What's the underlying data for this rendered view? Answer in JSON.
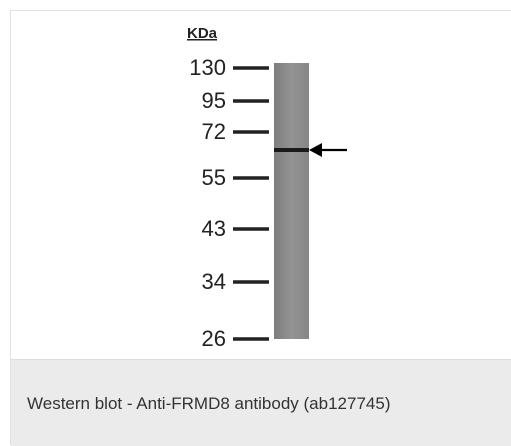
{
  "blot": {
    "unit_label": "KDa",
    "markers": [
      "130",
      "95",
      "72",
      "55",
      "43",
      "34",
      "26"
    ],
    "band_indicator": "arrow-left-icon"
  },
  "caption": {
    "text": "Western blot - Anti-FRMD8 antibody (ab127745)"
  },
  "colors": {
    "caption_bg": "#ebebeb",
    "lane": "#8a8a8a",
    "band": "#1a1a1a",
    "text": "#333333"
  }
}
